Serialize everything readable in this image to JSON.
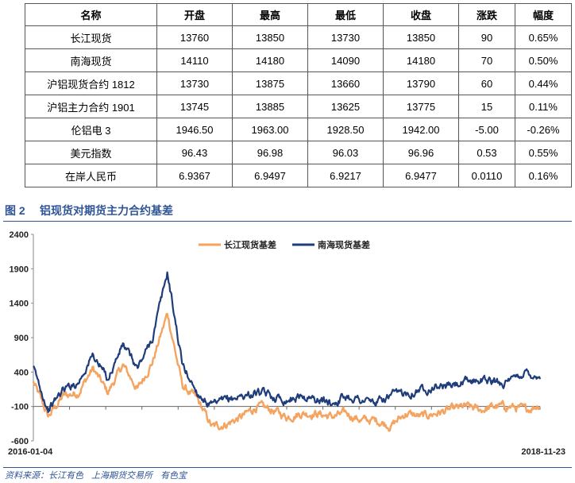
{
  "table": {
    "headers": [
      "名称",
      "开盘",
      "最高",
      "最低",
      "收盘",
      "涨跌",
      "幅度"
    ],
    "rows": [
      [
        "长江现货",
        "13760",
        "13850",
        "13730",
        "13850",
        "90",
        "0.65%"
      ],
      [
        "南海现货",
        "14110",
        "14180",
        "14090",
        "14180",
        "70",
        "0.50%"
      ],
      [
        "沪铝现货合约 1812",
        "13730",
        "13875",
        "13660",
        "13790",
        "60",
        "0.44%"
      ],
      [
        "沪铝主力合约 1901",
        "13745",
        "13885",
        "13625",
        "13775",
        "15",
        "0.11%"
      ],
      [
        "伦铝电 3",
        "1946.50",
        "1963.00",
        "1928.50",
        "1942.00",
        "-5.00",
        "-0.26%"
      ],
      [
        "美元指数",
        "96.43",
        "96.98",
        "96.03",
        "96.96",
        "0.53",
        "0.55%"
      ],
      [
        "在岸人民币",
        "6.9367",
        "6.9497",
        "6.9217",
        "6.9477",
        "0.0110",
        "0.16%"
      ]
    ]
  },
  "figure": {
    "number": "图 2",
    "title": "铝现货对期货主力合约基差"
  },
  "source": {
    "label": "资料来源：",
    "items": [
      "长江有色",
      "上海期货交易所",
      "有色宝"
    ]
  },
  "chart_data": {
    "type": "line",
    "title": "",
    "xlabel": "",
    "ylabel": "",
    "ylim": [
      -600,
      2400
    ],
    "yticks": [
      -600,
      -100,
      400,
      900,
      1400,
      1900,
      2400
    ],
    "x_tick_labels": [
      "2016-01-04",
      "2018-11-23"
    ],
    "grid": false,
    "legend_position": "top",
    "series": [
      {
        "name": "长江现货基差",
        "color": "#f4a460",
        "x": [
          "2016-01",
          "2016-02",
          "2016-03",
          "2016-04",
          "2016-05",
          "2016-06",
          "2016-07",
          "2016-08",
          "2016-09",
          "2016-10",
          "2016-11",
          "2016-12",
          "2017-01",
          "2017-02",
          "2017-03",
          "2017-04",
          "2017-05",
          "2017-06",
          "2017-07",
          "2017-08",
          "2017-09",
          "2017-10",
          "2017-11",
          "2017-12",
          "2018-01",
          "2018-02",
          "2018-03",
          "2018-04",
          "2018-05",
          "2018-06",
          "2018-07",
          "2018-08",
          "2018-09",
          "2018-10",
          "2018-11"
        ],
        "values": [
          250,
          -250,
          50,
          100,
          450,
          100,
          500,
          150,
          550,
          1250,
          200,
          0,
          -400,
          -350,
          -250,
          -100,
          -150,
          -250,
          -200,
          -200,
          -250,
          -200,
          -300,
          -300,
          -380,
          -200,
          -250,
          -200,
          -150,
          -100,
          -150,
          -100,
          -100,
          -150,
          -70
        ]
      },
      {
        "name": "南海现货基差",
        "color": "#1f3d7a",
        "x": [
          "2016-01",
          "2016-02",
          "2016-03",
          "2016-04",
          "2016-05",
          "2016-06",
          "2016-07",
          "2016-08",
          "2016-09",
          "2016-10",
          "2016-11",
          "2016-12",
          "2017-01",
          "2017-02",
          "2017-03",
          "2017-04",
          "2017-05",
          "2017-06",
          "2017-07",
          "2017-08",
          "2017-09",
          "2017-10",
          "2017-11",
          "2017-12",
          "2018-01",
          "2018-02",
          "2018-03",
          "2018-04",
          "2018-05",
          "2018-06",
          "2018-07",
          "2018-08",
          "2018-09",
          "2018-10",
          "2018-11"
        ],
        "values": [
          450,
          -150,
          150,
          250,
          650,
          300,
          800,
          450,
          900,
          1850,
          500,
          100,
          -100,
          0,
          50,
          100,
          50,
          0,
          50,
          0,
          -50,
          50,
          0,
          -50,
          50,
          100,
          150,
          200,
          200,
          250,
          300,
          250,
          250,
          400,
          330
        ]
      }
    ]
  }
}
